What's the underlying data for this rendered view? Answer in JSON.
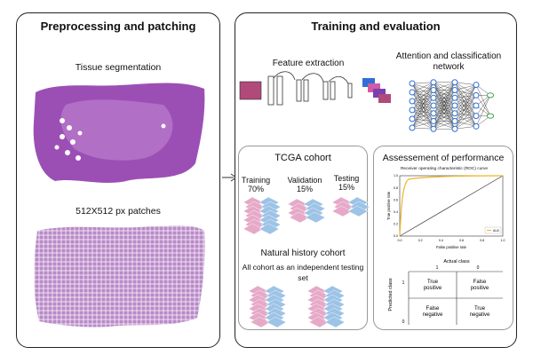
{
  "left_panel": {
    "title": "Preprocessing and patching",
    "segmentation_label": "Tissue segmentation",
    "patches_label": "512X512 px patches"
  },
  "right_panel": {
    "title": "Training and evaluation",
    "feature_extraction_label": "Feature extraction",
    "attention_label_line1": "Attention and classification",
    "attention_label_line2": "network",
    "tcga": {
      "title": "TCGA cohort",
      "training_label": "Training",
      "training_pct": "70%",
      "validation_label": "Validation",
      "validation_pct": "15%",
      "testing_label": "Testing",
      "testing_pct": "15%"
    },
    "natural_history": {
      "title": "Natural history cohort",
      "desc_line1": "All cohort as an independent testing",
      "desc_line2": "set"
    },
    "assessment": {
      "title": "Assessement of performance",
      "roc": {
        "title": "Receiver operating characteristic (ROC) curve",
        "xlabel": "False positive rate",
        "ylabel": "True positive rate",
        "legend": "AUC",
        "x_ticks": [
          "0.0",
          "0.2",
          "0.4",
          "0.6",
          "0.8",
          "1.0"
        ],
        "y_ticks": [
          "0.0",
          "0.2",
          "0.4",
          "0.6",
          "0.8",
          "1.0"
        ]
      },
      "confusion": {
        "actual_label": "Actual class",
        "predicted_label": "Predicted class",
        "col_1": "1",
        "col_0": "0",
        "row_1": "1",
        "row_0": "0",
        "tp": [
          "True",
          "positive"
        ],
        "fp": [
          "False",
          "positive"
        ],
        "fn": [
          "False",
          "negative"
        ],
        "tn": [
          "True",
          "negative"
        ]
      }
    }
  },
  "colors": {
    "tissue": "#9b4fb5",
    "tissue_light": "#c38ad3",
    "patch_pink": "#e6a9c8",
    "patch_blue": "#9dc3e6",
    "roc_curve": "#f0b429",
    "node_blue": "#2f6fd6",
    "node_green": "#3fa34d"
  }
}
